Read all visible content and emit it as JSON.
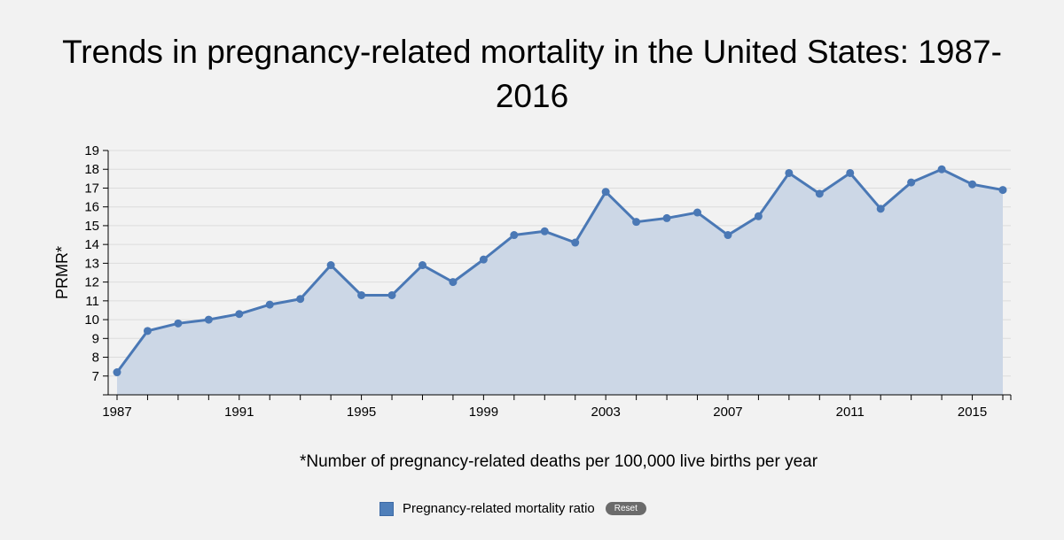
{
  "title_lines": [
    "Trends in pregnancy-related mortality in the United States: 1987-",
    "2016"
  ],
  "footnote": "*Number of pregnancy-related deaths per 100,000 live births per year",
  "legend": {
    "label": "Pregnancy-related mortality ratio",
    "reset_label": "Reset"
  },
  "colors": {
    "line": "#4a78b5",
    "area": "#ccd7e6",
    "point": "#4a78b5"
  },
  "chart_data": {
    "type": "area",
    "title": "Trends in pregnancy-related mortality in the United States: 1987-2016",
    "xlabel": "",
    "ylabel": "PRMR*",
    "xlim": [
      1987,
      2016
    ],
    "ylim": [
      6,
      19
    ],
    "x_ticks": [
      1987,
      1991,
      1995,
      1999,
      2003,
      2007,
      2011,
      2015
    ],
    "y_ticks": [
      7,
      8,
      9,
      10,
      11,
      12,
      13,
      14,
      15,
      16,
      17,
      18,
      19
    ],
    "grid": true,
    "legend_position": "bottom",
    "series": [
      {
        "name": "Pregnancy-related mortality ratio",
        "x": [
          1987,
          1988,
          1989,
          1990,
          1991,
          1992,
          1993,
          1994,
          1995,
          1996,
          1997,
          1998,
          1999,
          2000,
          2001,
          2002,
          2003,
          2004,
          2005,
          2006,
          2007,
          2008,
          2009,
          2010,
          2011,
          2012,
          2013,
          2014,
          2015,
          2016
        ],
        "values": [
          7.2,
          9.4,
          9.8,
          10.0,
          10.3,
          10.8,
          11.1,
          12.9,
          11.3,
          11.3,
          12.9,
          12.0,
          13.2,
          14.5,
          14.7,
          14.1,
          16.8,
          15.2,
          15.4,
          15.7,
          14.5,
          15.5,
          17.8,
          16.7,
          17.8,
          15.9,
          17.3,
          18.0,
          17.2,
          16.9
        ]
      }
    ]
  }
}
